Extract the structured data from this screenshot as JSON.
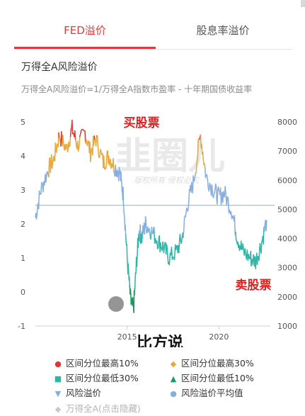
{
  "tabs": [
    {
      "label": "FED溢价",
      "active": true
    },
    {
      "label": "股息率溢价",
      "active": false
    }
  ],
  "title": "万得全A风险溢价",
  "subtitle": "万得全A风险溢价=1/万得全A指数市盈率 - 十年期国债收益率",
  "watermark": {
    "main": "韭圈儿",
    "sub": "版权所有 侵权必究"
  },
  "annotations": {
    "buy": "买股票",
    "sell": "卖股票",
    "bottom": "比方说"
  },
  "chart_data": {
    "type": "line",
    "title": "万得全A风险溢价",
    "x_ticks": [
      "2015",
      "2020"
    ],
    "y_left": {
      "ticks": [
        "5",
        "4",
        "3",
        "2",
        "1",
        "0",
        "-1"
      ],
      "range": [
        -1,
        5
      ]
    },
    "y_right": {
      "ticks": [
        "8000",
        "7000",
        "6000",
        "5000",
        "4000",
        "3000",
        "2000",
        "1000"
      ],
      "range": [
        1000,
        8000
      ]
    },
    "mean_line": 2.55,
    "series": [
      {
        "name": "区间分位最高10%",
        "color": "#e03838",
        "marker": "●"
      },
      {
        "name": "区间分位最高30%",
        "color": "#e8a83a",
        "marker": "◆"
      },
      {
        "name": "区间分位最低30%",
        "color": "#2fb5a5",
        "marker": "■"
      },
      {
        "name": "区间分位最低10%",
        "color": "#1a9a63",
        "marker": "▲"
      },
      {
        "name": "风险溢价",
        "color": "#86aee0",
        "marker": "▼"
      },
      {
        "name": "风险溢价平均值",
        "color": "#86aee0",
        "marker": "●"
      },
      {
        "name": "万得全A(点击隐藏)",
        "color": "#c8c8c8",
        "marker": "◆"
      }
    ],
    "risk_premium": {
      "x": [
        2010.0,
        2010.3,
        2010.7,
        2011.0,
        2011.3,
        2011.7,
        2012.0,
        2012.3,
        2012.7,
        2013.0,
        2013.3,
        2013.7,
        2014.0,
        2014.3,
        2014.6,
        2014.8,
        2015.0,
        2015.2,
        2015.35,
        2015.5,
        2015.65,
        2015.8,
        2016.0,
        2016.3,
        2016.7,
        2017.0,
        2017.3,
        2017.7,
        2018.0,
        2018.3,
        2018.6,
        2019.0,
        2019.3,
        2019.7,
        2020.0,
        2020.3,
        2020.7,
        2021.0,
        2021.3,
        2021.7,
        2022.0,
        2022.3,
        2022.6
      ],
      "y": [
        2.2,
        3.0,
        3.6,
        3.9,
        4.6,
        4.2,
        4.8,
        4.3,
        4.7,
        4.1,
        4.5,
        3.8,
        4.0,
        3.7,
        3.5,
        2.8,
        1.0,
        -0.3,
        -0.5,
        0.8,
        1.8,
        1.6,
        2.0,
        1.8,
        1.5,
        1.3,
        1.0,
        1.2,
        1.6,
        2.6,
        3.2,
        4.6,
        3.4,
        3.0,
        2.8,
        2.9,
        2.4,
        1.6,
        1.2,
        1.0,
        0.9,
        1.4,
        2.1
      ]
    }
  },
  "legend": [
    {
      "label": "区间分位最高10%",
      "color": "#e03838",
      "marker": "●"
    },
    {
      "label": "区间分位最高30%",
      "color": "#e8a83a",
      "marker": "◆"
    },
    {
      "label": "区间分位最低30%",
      "color": "#2fb5a5",
      "marker": "■"
    },
    {
      "label": "区间分位最低10%",
      "color": "#1a9a63",
      "marker": "▲"
    },
    {
      "label": "风险溢价",
      "color": "#86aee0",
      "marker": "▼"
    },
    {
      "label": "风险溢价平均值",
      "color": "#86aee0",
      "marker": "●"
    },
    {
      "label": "万得全A(点击隐藏)",
      "color": "#c8c8c8",
      "marker": "◆"
    }
  ]
}
